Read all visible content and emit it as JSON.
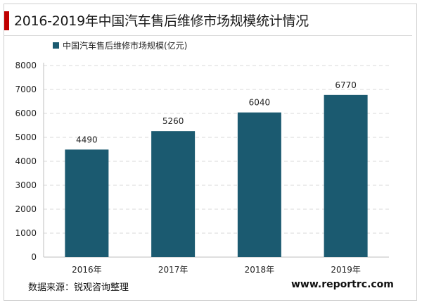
{
  "title": "2016-2019年中国汽车售后维修市场规模统计情况",
  "source": "数据来源：锐观咨询整理",
  "website": "www.reportrc.com",
  "colors": {
    "bar": "#1b5a70",
    "accent": "#c00000"
  },
  "chart_data": {
    "type": "bar",
    "categories": [
      "2016年",
      "2017年",
      "2018年",
      "2019年"
    ],
    "series": [
      {
        "name": "中国汽车售后维修市场规模(亿元)",
        "values": [
          4490,
          5260,
          6040,
          6770
        ]
      }
    ],
    "ylim": [
      0,
      8000
    ],
    "yticks": [
      0,
      1000,
      2000,
      3000,
      4000,
      5000,
      6000,
      7000,
      8000
    ],
    "grid": true,
    "legend": "top-left",
    "data_labels": true
  }
}
